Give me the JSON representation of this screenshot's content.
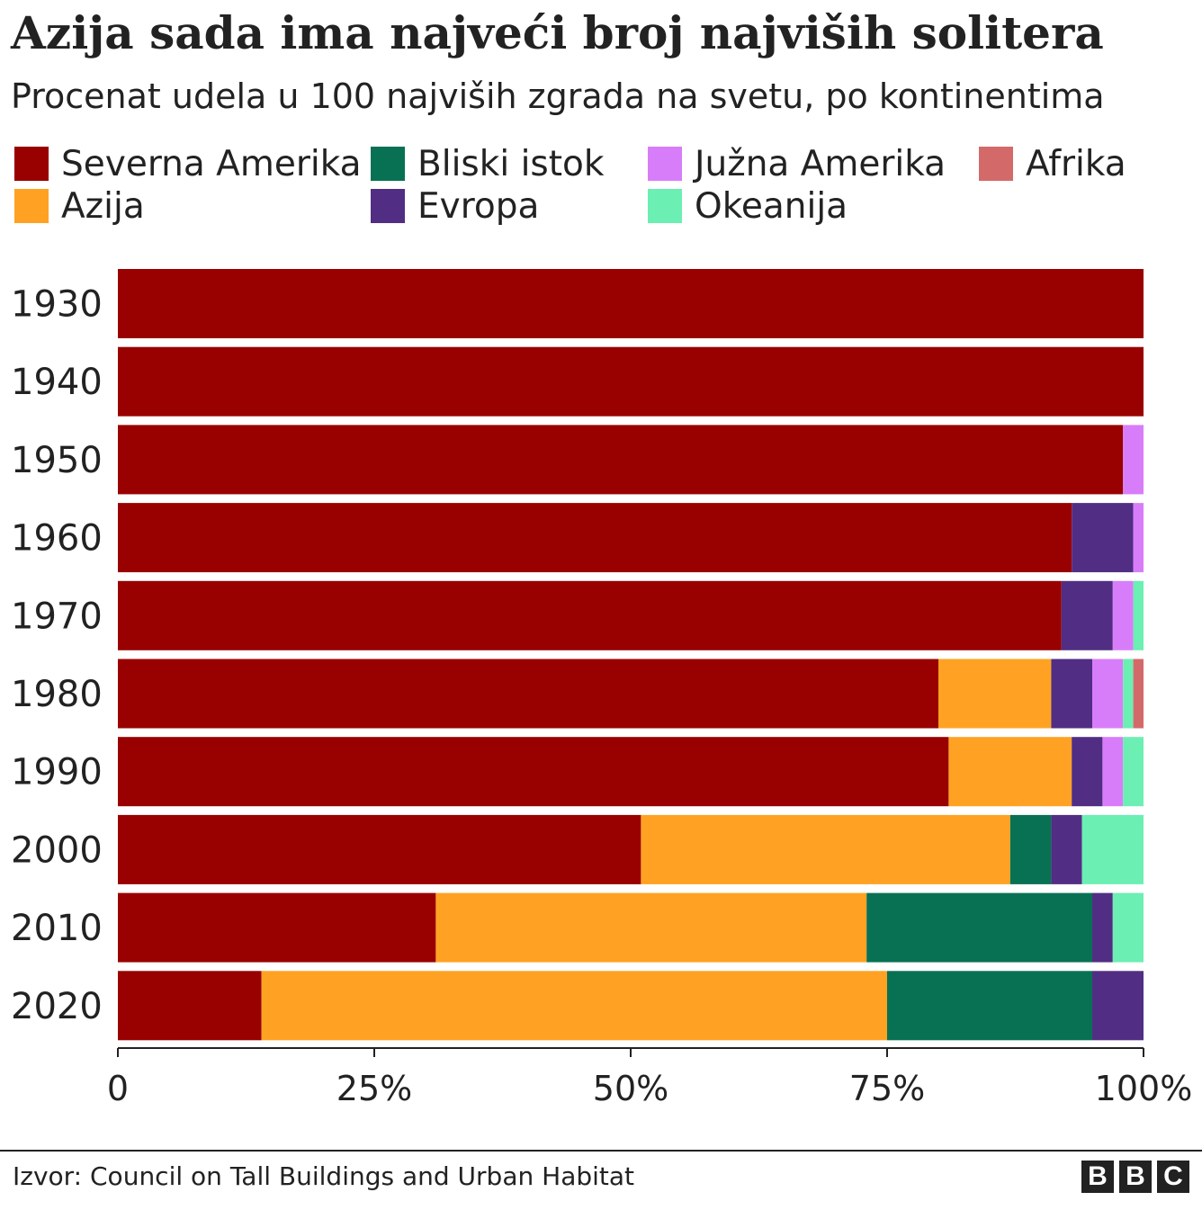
{
  "title": "Azija sada ima najveći broj najviših solitera",
  "subtitle": "Procenat udela u 100 najviših zgrada na svetu, po kontinentima",
  "source": "Izvor: Council on Tall Buildings and Urban Habitat",
  "logo": [
    "B",
    "B",
    "C"
  ],
  "legend": [
    {
      "label": "Severna Amerika",
      "color": "#990000"
    },
    {
      "label": "Azija",
      "color": "#FFA223"
    },
    {
      "label": "Bliski istok",
      "color": "#087153"
    },
    {
      "label": "Evropa",
      "color": "#512E83"
    },
    {
      "label": "Južna Amerika",
      "color": "#D87DFA"
    },
    {
      "label": "Okeanija",
      "color": "#6BEFB3"
    },
    {
      "label": "Afrika",
      "color": "#D36A69"
    }
  ],
  "chart_data": {
    "type": "bar",
    "orientation": "horizontal",
    "stacked": true,
    "title": "Azija sada ima najveći broj najviših solitera",
    "subtitle": "Procenat udela u 100 najviših zgrada na svetu, po kontinentima",
    "categories": [
      "1930",
      "1940",
      "1950",
      "1960",
      "1970",
      "1980",
      "1990",
      "2000",
      "2010",
      "2020"
    ],
    "series": [
      {
        "name": "Severna Amerika",
        "color": "#990000",
        "values": [
          100,
          100,
          98,
          93,
          92,
          80,
          81,
          51,
          31,
          14
        ]
      },
      {
        "name": "Azija",
        "color": "#FFA223",
        "values": [
          0,
          0,
          0,
          0,
          0,
          11,
          12,
          36,
          42,
          61
        ]
      },
      {
        "name": "Bliski istok",
        "color": "#087153",
        "values": [
          0,
          0,
          0,
          0,
          0,
          0,
          0,
          4,
          22,
          20
        ]
      },
      {
        "name": "Evropa",
        "color": "#512E83",
        "values": [
          0,
          0,
          0,
          6,
          5,
          4,
          3,
          3,
          2,
          5
        ]
      },
      {
        "name": "Južna Amerika",
        "color": "#D87DFA",
        "values": [
          0,
          0,
          2,
          1,
          2,
          3,
          2,
          0,
          0,
          0
        ]
      },
      {
        "name": "Okeanija",
        "color": "#6BEFB3",
        "values": [
          0,
          0,
          0,
          0,
          1,
          1,
          2,
          6,
          3,
          0
        ]
      },
      {
        "name": "Afrika",
        "color": "#D36A69",
        "values": [
          0,
          0,
          0,
          0,
          0,
          1,
          0,
          0,
          0,
          0
        ]
      }
    ],
    "xlim": [
      0,
      100
    ],
    "xticks": [
      0,
      25,
      50,
      75,
      100
    ],
    "xtick_labels": [
      "0",
      "25%",
      "50%",
      "75%",
      "100%"
    ],
    "grid": false,
    "legend_position": "top"
  }
}
